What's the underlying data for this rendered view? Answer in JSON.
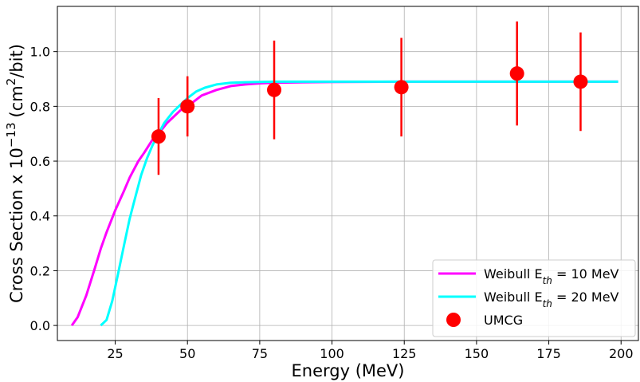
{
  "chart_data": {
    "type": "scatter",
    "xlabel": "Energy (MeV)",
    "ylabel": "Cross Section x 10",
    "ylabel_exponent": "−13",
    "ylabel_unit_open": "(cm",
    "ylabel_unit_sup": "2",
    "ylabel_unit_close": "/bit)",
    "xlim": [
      5,
      206
    ],
    "ylim": [
      -0.055,
      1.165
    ],
    "xticks": [
      25,
      50,
      75,
      100,
      125,
      150,
      175,
      200
    ],
    "xtick_labels": [
      "25",
      "50",
      "75",
      "100",
      "125",
      "150",
      "175",
      "200"
    ],
    "yticks": [
      0.0,
      0.2,
      0.4,
      0.6,
      0.8,
      1.0
    ],
    "ytick_labels": [
      "0.0",
      "0.2",
      "0.4",
      "0.6",
      "0.8",
      "1.0"
    ],
    "grid": true,
    "legend_position": "lower-right",
    "series": [
      {
        "name": "Weibull E_th = 10 MeV",
        "legend_prefix": "Weibull E",
        "legend_sub": "th",
        "legend_suffix": " = 10 MeV",
        "kind": "line",
        "color": "#ff00ff",
        "x": [
          10,
          12,
          15,
          18,
          20,
          22,
          25,
          28,
          30,
          33,
          35,
          38,
          40,
          43,
          45,
          48,
          50,
          55,
          60,
          65,
          70,
          75,
          80,
          90,
          100,
          125,
          150,
          175,
          199
        ],
        "y": [
          0.0,
          0.03,
          0.11,
          0.21,
          0.28,
          0.34,
          0.42,
          0.49,
          0.54,
          0.6,
          0.63,
          0.68,
          0.7,
          0.74,
          0.76,
          0.79,
          0.8,
          0.84,
          0.86,
          0.874,
          0.88,
          0.884,
          0.886,
          0.888,
          0.889,
          0.89,
          0.89,
          0.89,
          0.89
        ]
      },
      {
        "name": "Weibull E_th = 20 MeV",
        "legend_prefix": "Weibull E",
        "legend_sub": "th",
        "legend_suffix": " = 20 MeV",
        "kind": "line",
        "color": "#00ffff",
        "x": [
          20,
          22,
          24,
          26,
          28,
          30,
          32,
          34,
          36,
          38,
          40,
          42,
          45,
          48,
          50,
          53,
          56,
          60,
          65,
          70,
          75,
          80,
          90,
          100,
          125,
          150,
          175,
          199
        ],
        "y": [
          0.0,
          0.02,
          0.09,
          0.19,
          0.29,
          0.39,
          0.47,
          0.55,
          0.61,
          0.66,
          0.7,
          0.74,
          0.78,
          0.81,
          0.83,
          0.854,
          0.868,
          0.88,
          0.886,
          0.888,
          0.889,
          0.89,
          0.89,
          0.89,
          0.89,
          0.89,
          0.89,
          0.89
        ]
      },
      {
        "name": "UMCG",
        "kind": "errorbar",
        "color": "#ff0000",
        "x": [
          40,
          50,
          80,
          124,
          164,
          186
        ],
        "y": [
          0.69,
          0.8,
          0.86,
          0.87,
          0.92,
          0.89
        ],
        "yerr": [
          0.14,
          0.11,
          0.18,
          0.18,
          0.19,
          0.18
        ]
      }
    ]
  }
}
